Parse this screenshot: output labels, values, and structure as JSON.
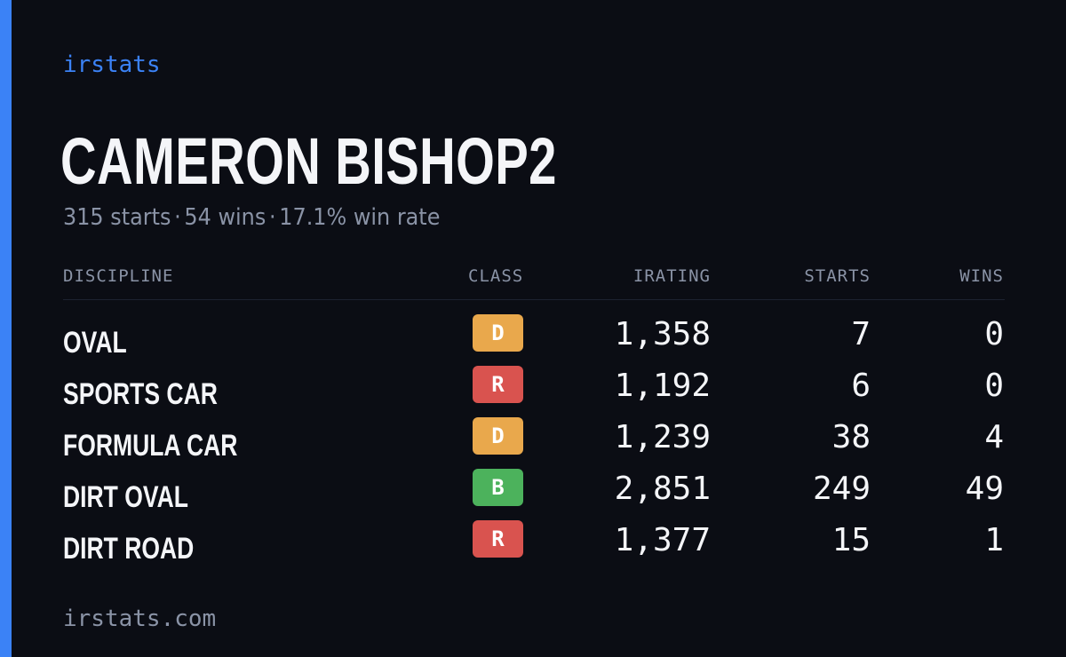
{
  "brand": "irstats",
  "player": {
    "name": "CAMERON BISHOP2",
    "summary": {
      "starts": "315 starts",
      "wins": "54 wins",
      "win_rate": "17.1% win rate",
      "separator": "·"
    }
  },
  "table": {
    "headers": {
      "discipline": "DISCIPLINE",
      "class": "CLASS",
      "irating": "IRATING",
      "starts": "STARTS",
      "wins": "WINS"
    },
    "rows": [
      {
        "discipline": "OVAL",
        "class": "D",
        "class_color": "#e9a84c",
        "irating": "1,358",
        "starts": "7",
        "wins": "0"
      },
      {
        "discipline": "SPORTS CAR",
        "class": "R",
        "class_color": "#d9534f",
        "irating": "1,192",
        "starts": "6",
        "wins": "0"
      },
      {
        "discipline": "FORMULA CAR",
        "class": "D",
        "class_color": "#e9a84c",
        "irating": "1,239",
        "starts": "38",
        "wins": "4"
      },
      {
        "discipline": "DIRT OVAL",
        "class": "B",
        "class_color": "#4cb25c",
        "irating": "2,851",
        "starts": "249",
        "wins": "49"
      },
      {
        "discipline": "DIRT ROAD",
        "class": "R",
        "class_color": "#d9534f",
        "irating": "1,377",
        "starts": "15",
        "wins": "1"
      }
    ]
  },
  "footer": "irstats.com",
  "colors": {
    "background": "#0b0d14",
    "accent": "#3b82f6",
    "text_primary": "#f4f5f8",
    "text_muted": "#8a93a6"
  }
}
